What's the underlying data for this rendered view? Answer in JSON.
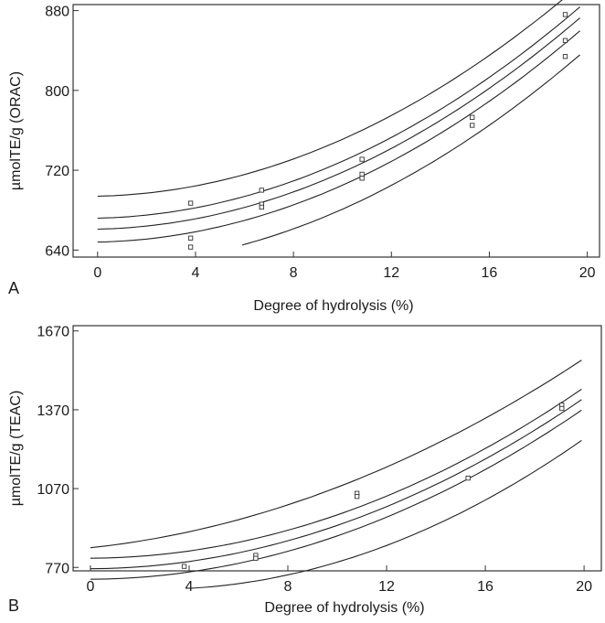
{
  "chart_data": [
    {
      "type": "scatter",
      "panel_label": "A",
      "title": "",
      "xlabel": "Degree of hydrolysis (%)",
      "ylabel": "µmolTE/g (ORAC)",
      "xlim": [
        -1,
        20.5
      ],
      "ylim": [
        633,
        886
      ],
      "x_ticks": [
        0,
        4,
        8,
        12,
        16,
        20
      ],
      "y_ticks": [
        640,
        720,
        800,
        880
      ],
      "grid": false,
      "series": [
        {
          "name": "observed",
          "kind": "points",
          "x": [
            3.8,
            3.8,
            3.8,
            6.7,
            6.7,
            6.7,
            10.8,
            10.8,
            10.8,
            15.3,
            15.3,
            19.1,
            19.1,
            19.1
          ],
          "y": [
            687,
            652,
            643,
            700,
            686,
            683,
            731,
            716,
            712,
            773,
            765,
            876,
            850,
            834
          ]
        },
        {
          "name": "fit",
          "kind": "curve",
          "x0": 0,
          "x1": 19.7,
          "coef": [
            661,
            0.5,
            0.52
          ]
        },
        {
          "name": "confidence upper",
          "kind": "curve",
          "x0": 0,
          "x1": 19.7,
          "coef": [
            672,
            0.5,
            0.52
          ]
        },
        {
          "name": "confidence lower",
          "kind": "curve",
          "x0": 0,
          "x1": 19.7,
          "coef": [
            648,
            0.5,
            0.52
          ]
        },
        {
          "name": "prediction upper",
          "kind": "curve",
          "x0": 0,
          "x1": 19.2,
          "coef": [
            694,
            0.5,
            0.52
          ]
        },
        {
          "name": "prediction lower",
          "kind": "curve",
          "x0": 5.9,
          "x1": 19.7,
          "coef": [
            624,
            0.5,
            0.52
          ]
        }
      ]
    },
    {
      "type": "scatter",
      "panel_label": "B",
      "title": "",
      "xlabel": "Degree of hydrolysis (%)",
      "ylabel": "µmolTE/g (TEAC)",
      "xlim": [
        -0.7,
        20.7
      ],
      "ylim": [
        757,
        1690
      ],
      "x_ticks": [
        0,
        4,
        8,
        12,
        16,
        20
      ],
      "y_ticks": [
        770,
        1070,
        1370,
        1670
      ],
      "grid": false,
      "series": [
        {
          "name": "observed",
          "kind": "points",
          "x": [
            3.8,
            6.7,
            6.7,
            10.8,
            10.8,
            15.3,
            19.1,
            19.1
          ],
          "y": [
            774,
            816,
            805,
            1052,
            1040,
            1110,
            1388,
            1375
          ]
        },
        {
          "name": "fit",
          "kind": "curve",
          "x0": 0,
          "x1": 19.9,
          "coef": [
            765,
            0.5,
            1.6
          ]
        },
        {
          "name": "confidence upper",
          "kind": "curve",
          "x0": 0,
          "x1": 19.9,
          "coef": [
            805,
            0.5,
            1.6
          ]
        },
        {
          "name": "confidence lower",
          "kind": "curve",
          "x0": 0,
          "x1": 19.9,
          "coef": [
            725,
            0.5,
            1.6
          ]
        },
        {
          "name": "prediction upper",
          "kind": "curve",
          "x0": 0,
          "x1": 19.9,
          "coef": [
            845,
            10,
            1.3
          ]
        },
        {
          "name": "prediction lower",
          "kind": "curve",
          "x0": 4.1,
          "x1": 19.9,
          "coef": [
            700,
            -10,
            1.9
          ]
        }
      ]
    }
  ]
}
